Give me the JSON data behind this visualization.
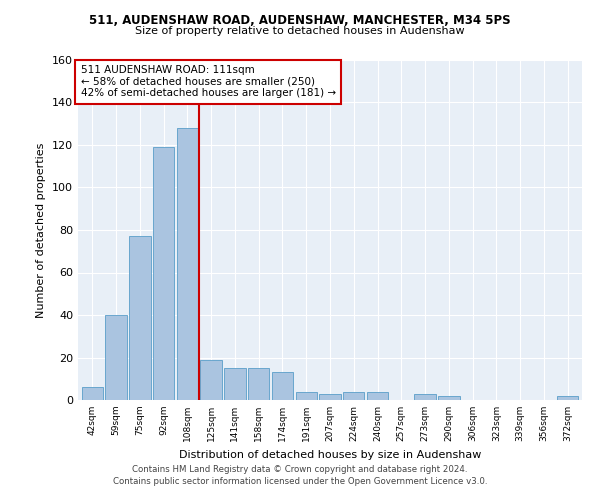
{
  "title1": "511, AUDENSHAW ROAD, AUDENSHAW, MANCHESTER, M34 5PS",
  "title2": "Size of property relative to detached houses in Audenshaw",
  "xlabel": "Distribution of detached houses by size in Audenshaw",
  "ylabel": "Number of detached properties",
  "categories": [
    "42sqm",
    "59sqm",
    "75sqm",
    "92sqm",
    "108sqm",
    "125sqm",
    "141sqm",
    "158sqm",
    "174sqm",
    "191sqm",
    "207sqm",
    "224sqm",
    "240sqm",
    "257sqm",
    "273sqm",
    "290sqm",
    "306sqm",
    "323sqm",
    "339sqm",
    "356sqm",
    "372sqm"
  ],
  "values": [
    6,
    40,
    77,
    119,
    128,
    19,
    15,
    15,
    13,
    4,
    3,
    4,
    4,
    0,
    3,
    2,
    0,
    0,
    0,
    0,
    2
  ],
  "bar_color": "#aac4e0",
  "bar_edge_color": "#5a9ec9",
  "property_line_x": 4.5,
  "annotation_line1": "511 AUDENSHAW ROAD: 111sqm",
  "annotation_line2": "← 58% of detached houses are smaller (250)",
  "annotation_line3": "42% of semi-detached houses are larger (181) →",
  "red_line_color": "#cc0000",
  "ylim": [
    0,
    160
  ],
  "yticks": [
    0,
    20,
    40,
    60,
    80,
    100,
    120,
    140,
    160
  ],
  "annotation_box_color": "#ffffff",
  "annotation_box_edge": "#cc0000",
  "footer1": "Contains HM Land Registry data © Crown copyright and database right 2024.",
  "footer2": "Contains public sector information licensed under the Open Government Licence v3.0.",
  "bg_color": "#e8eff7"
}
